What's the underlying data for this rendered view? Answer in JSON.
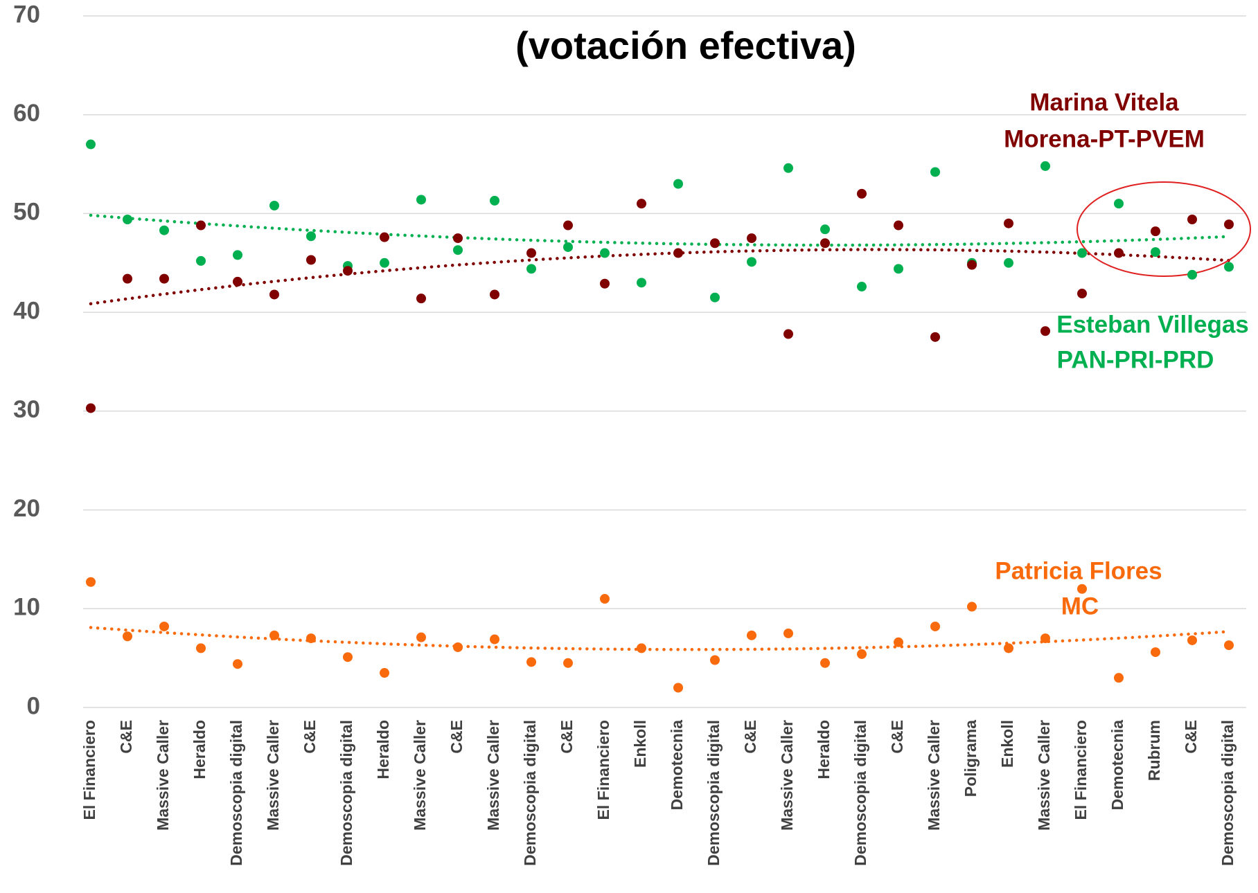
{
  "chart_data": {
    "type": "scatter",
    "title": "(votación efectiva)",
    "categories": [
      "El Financiero",
      "C&E",
      "Massive Caller",
      "Heraldo",
      "Demoscopia digital",
      "Massive Caller",
      "C&E",
      "Demoscopia digital",
      "Heraldo",
      "Massive Caller",
      "C&E",
      "Massive Caller",
      "Demoscopia digital",
      "C&E",
      "El Financiero",
      "Enkoll",
      "Demotecnia",
      "Demoscopia digital",
      "C&E",
      "Massive Caller",
      "Heraldo",
      "Demoscopia digital",
      "C&E",
      "Massive Caller",
      "Poligrama",
      "Enkoll",
      "Massive Caller",
      "El Financiero",
      "Demotecnia",
      "Rubrum",
      "C&E",
      "Demoscopia digital"
    ],
    "series": [
      {
        "name": "Esteban Villegas",
        "party": "PAN-PRI-PRD",
        "color": "#00b050",
        "values": [
          57,
          49.4,
          48.3,
          45.2,
          45.8,
          50.8,
          47.7,
          44.7,
          45.0,
          51.4,
          46.3,
          51.3,
          44.4,
          46.6,
          46.0,
          43.0,
          53.0,
          41.5,
          45.1,
          54.6,
          48.4,
          42.6,
          44.4,
          54.2,
          45.0,
          45.0,
          54.8,
          46.0,
          51.0,
          46.1,
          43.8,
          44.6
        ]
      },
      {
        "name": "Marina Vitela",
        "party": "Morena-PT-PVEM",
        "color": "#800000",
        "values": [
          30.3,
          43.4,
          43.4,
          48.8,
          43.1,
          41.8,
          45.3,
          44.2,
          47.6,
          41.4,
          47.5,
          41.8,
          46.0,
          48.8,
          42.9,
          51.0,
          46.0,
          47.0,
          47.5,
          37.8,
          47.0,
          52.0,
          48.8,
          37.5,
          44.8,
          49.0,
          38.1,
          41.9,
          46.0,
          48.2,
          49.4,
          48.9
        ]
      },
      {
        "name": "Patricia Flores",
        "party": "MC",
        "color": "#f96a0c",
        "values": [
          12.7,
          7.2,
          8.2,
          6.0,
          4.4,
          7.3,
          7.0,
          5.1,
          3.5,
          7.1,
          6.1,
          6.9,
          4.6,
          4.5,
          11.0,
          6.0,
          2.0,
          4.8,
          7.3,
          7.5,
          4.5,
          5.4,
          6.6,
          8.2,
          10.2,
          6.0,
          7.0,
          12.0,
          3.0,
          5.6,
          6.8,
          6.3
        ]
      }
    ],
    "trendline": {
      "type": "polynomial",
      "order": 2
    },
    "ylim": [
      0,
      70
    ],
    "yticks": [
      0,
      10,
      20,
      30,
      40,
      50,
      60,
      70
    ],
    "grid": true
  }
}
